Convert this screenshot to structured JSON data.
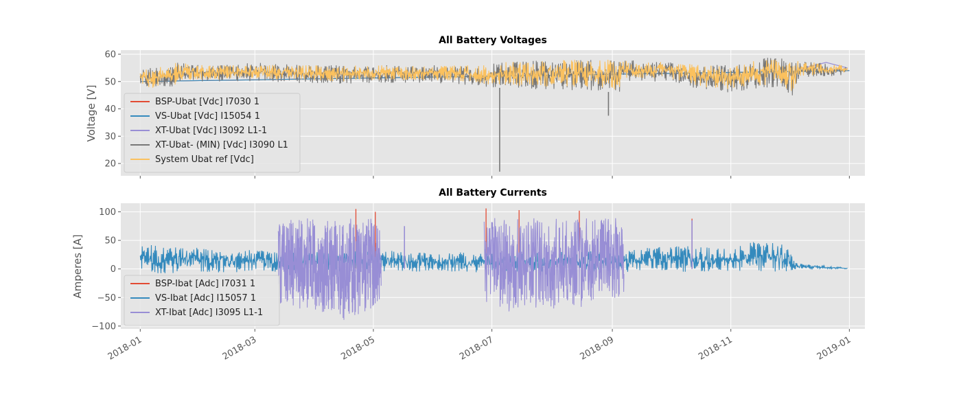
{
  "chart_data": [
    {
      "type": "line",
      "title": "All Battery Voltages",
      "ylabel": "Voltage [V]",
      "xlabel": "",
      "ylim": [
        15.5,
        61.5
      ],
      "yticks": [
        20,
        30,
        40,
        50,
        60
      ],
      "xlim": [
        "2017-12-22",
        "2019-01-09"
      ],
      "grid": true,
      "legend_position": "lower-left",
      "series": [
        {
          "name": "BSP-Ubat [Vdc] I7030 1",
          "color": "#e24a33",
          "points": [
            [
              "2018-01-01",
              50
            ],
            [
              "2019-01-01",
              54
            ]
          ]
        },
        {
          "name": "VS-Ubat [Vdc] I15054 1",
          "color": "#348abd",
          "points": [
            [
              "2018-01-01",
              50
            ],
            [
              "2019-01-01",
              54
            ]
          ]
        },
        {
          "name": "XT-Ubat [Vdc] I3092 L1-1",
          "color": "#988ed5",
          "points": [
            [
              "2018-12-06",
              54.5
            ],
            [
              "2018-12-20",
              57
            ],
            [
              "2018-12-31",
              55
            ]
          ]
        },
        {
          "name": "XT-Ubat- (MIN) [Vdc] I3090 L1",
          "color": "#777777",
          "upper": [
            [
              "2018-01-01",
              55
            ],
            [
              "2018-01-20",
              57
            ],
            [
              "2018-02-01",
              56
            ],
            [
              "2018-03-01",
              57
            ],
            [
              "2018-04-01",
              56
            ],
            [
              "2018-05-01",
              56
            ],
            [
              "2018-06-01",
              56
            ],
            [
              "2018-06-28",
              56
            ],
            [
              "2018-07-05",
              57
            ],
            [
              "2018-08-01",
              58
            ],
            [
              "2018-09-06",
              58
            ],
            [
              "2018-10-01",
              57
            ],
            [
              "2018-11-01",
              56
            ],
            [
              "2018-11-20",
              59
            ],
            [
              "2018-12-05",
              58
            ],
            [
              "2018-12-31",
              56
            ]
          ],
          "lower": [
            [
              "2018-01-01",
              48
            ],
            [
              "2018-01-06",
              47
            ],
            [
              "2018-01-20",
              48.5
            ],
            [
              "2018-02-01",
              50
            ],
            [
              "2018-03-01",
              50
            ],
            [
              "2018-03-20",
              49.5
            ],
            [
              "2018-04-15",
              49
            ],
            [
              "2018-05-01",
              49.5
            ],
            [
              "2018-06-01",
              49.5
            ],
            [
              "2018-06-28",
              48
            ],
            [
              "2018-07-10",
              47.5
            ],
            [
              "2018-08-01",
              47
            ],
            [
              "2018-08-20",
              46.5
            ],
            [
              "2018-09-05",
              46
            ],
            [
              "2018-09-06",
              50
            ],
            [
              "2018-10-01",
              50
            ],
            [
              "2018-10-15",
              47
            ],
            [
              "2018-10-31",
              46
            ],
            [
              "2018-11-10",
              47
            ],
            [
              "2018-11-25",
              48
            ],
            [
              "2018-12-03",
              44.5
            ],
            [
              "2018-12-06",
              51
            ],
            [
              "2018-12-31",
              52.5
            ]
          ],
          "spikes": [
            [
              "2018-07-05",
              17
            ],
            [
              "2018-08-30",
              37.5
            ]
          ]
        },
        {
          "name": "System Ubat ref [Vdc]",
          "color": "#fbc15e",
          "upper": [
            [
              "2018-01-01",
              54
            ],
            [
              "2018-01-20",
              57
            ],
            [
              "2018-02-01",
              56
            ],
            [
              "2018-03-01",
              56
            ],
            [
              "2018-04-01",
              56
            ],
            [
              "2018-05-01",
              56
            ],
            [
              "2018-06-01",
              56
            ],
            [
              "2018-06-28",
              56
            ],
            [
              "2018-07-05",
              57
            ],
            [
              "2018-08-01",
              58
            ],
            [
              "2018-09-06",
              58
            ],
            [
              "2018-10-01",
              57
            ],
            [
              "2018-11-01",
              56
            ],
            [
              "2018-11-20",
              58.5
            ],
            [
              "2018-12-05",
              57.5
            ],
            [
              "2018-12-31",
              56
            ]
          ],
          "lower": [
            [
              "2018-01-01",
              48.5
            ],
            [
              "2018-01-06",
              47.5
            ],
            [
              "2018-01-20",
              49
            ],
            [
              "2018-02-01",
              50.5
            ],
            [
              "2018-03-01",
              51
            ],
            [
              "2018-03-20",
              50.5
            ],
            [
              "2018-04-15",
              50
            ],
            [
              "2018-05-01",
              50.5
            ],
            [
              "2018-06-01",
              50.5
            ],
            [
              "2018-06-28",
              49
            ],
            [
              "2018-07-10",
              48.5
            ],
            [
              "2018-08-01",
              48
            ],
            [
              "2018-08-20",
              47.5
            ],
            [
              "2018-09-05",
              47
            ],
            [
              "2018-09-06",
              51
            ],
            [
              "2018-10-01",
              51
            ],
            [
              "2018-10-15",
              48
            ],
            [
              "2018-10-31",
              47
            ],
            [
              "2018-11-10",
              48
            ],
            [
              "2018-11-25",
              49
            ],
            [
              "2018-12-03",
              46
            ],
            [
              "2018-12-06",
              52
            ],
            [
              "2018-12-31",
              53
            ]
          ]
        }
      ]
    },
    {
      "type": "line",
      "title": "All Battery Currents",
      "ylabel": "Amperes [A]",
      "xlabel": "",
      "ylim": [
        -105,
        115
      ],
      "yticks": [
        -100,
        -50,
        0,
        50,
        100
      ],
      "xlim": [
        "2017-12-22",
        "2019-01-09"
      ],
      "xticks": [
        "2018-01",
        "2018-03",
        "2018-05",
        "2018-07",
        "2018-09",
        "2018-11",
        "2019-01"
      ],
      "grid": true,
      "legend_position": "lower-left",
      "series": [
        {
          "name": "BSP-Ibat [Adc] I7031 1",
          "color": "#e24a33",
          "points": [
            [
              "2018-04-22",
              105
            ],
            [
              "2018-05-02",
              100
            ],
            [
              "2018-06-28",
              106
            ],
            [
              "2018-07-15",
              103
            ],
            [
              "2018-08-15",
              102
            ],
            [
              "2018-10-12",
              88
            ]
          ]
        },
        {
          "name": "VS-Ibat [Adc] I15057 1",
          "color": "#348abd",
          "upper": [
            [
              "2018-01-01",
              45
            ],
            [
              "2018-01-15",
              38
            ],
            [
              "2018-02-01",
              40
            ],
            [
              "2018-02-20",
              35
            ],
            [
              "2018-03-13",
              30
            ],
            [
              "2018-05-05",
              32
            ],
            [
              "2018-06-01",
              30
            ],
            [
              "2018-06-27",
              28
            ],
            [
              "2018-09-06",
              32
            ],
            [
              "2018-10-01",
              42
            ],
            [
              "2018-11-01",
              35
            ],
            [
              "2018-11-15",
              50
            ],
            [
              "2018-11-30",
              42
            ],
            [
              "2018-12-05",
              10
            ],
            [
              "2018-12-31",
              2
            ]
          ],
          "lower": [
            [
              "2018-01-01",
              -8
            ],
            [
              "2018-03-13",
              -5
            ],
            [
              "2018-05-05",
              -5
            ],
            [
              "2018-06-27",
              -6
            ],
            [
              "2018-09-06",
              -5
            ],
            [
              "2018-11-30",
              -5
            ],
            [
              "2018-12-05",
              0
            ],
            [
              "2018-12-31",
              0
            ]
          ]
        },
        {
          "name": "XT-Ibat [Adc] I3095 L1-1",
          "color": "#988ed5",
          "blocks": [
            {
              "x0": "2018-03-13",
              "x1": "2018-05-05",
              "upper": [
                [
                  "2018-03-13",
                  85
                ],
                [
                  "2018-04-01",
                  90
                ],
                [
                  "2018-05-05",
                  88
                ]
              ],
              "lower": [
                [
                  "2018-03-13",
                  -60
                ],
                [
                  "2018-03-25",
                  -70
                ],
                [
                  "2018-04-10",
                  -85
                ],
                [
                  "2018-04-20",
                  -95
                ],
                [
                  "2018-05-05",
                  -60
                ]
              ]
            },
            {
              "x0": "2018-06-27",
              "x1": "2018-09-07",
              "upper": [
                [
                  "2018-06-27",
                  90
                ],
                [
                  "2018-08-01",
                  90
                ],
                [
                  "2018-09-07",
                  90
                ]
              ],
              "lower": [
                [
                  "2018-06-27",
                  -60
                ],
                [
                  "2018-07-10",
                  -75
                ],
                [
                  "2018-08-01",
                  -70
                ],
                [
                  "2018-08-15",
                  -68
                ],
                [
                  "2018-09-07",
                  -50
                ]
              ]
            }
          ],
          "spikes": [
            [
              "2018-05-17",
              75
            ],
            [
              "2018-10-12",
              85
            ]
          ]
        }
      ]
    }
  ]
}
